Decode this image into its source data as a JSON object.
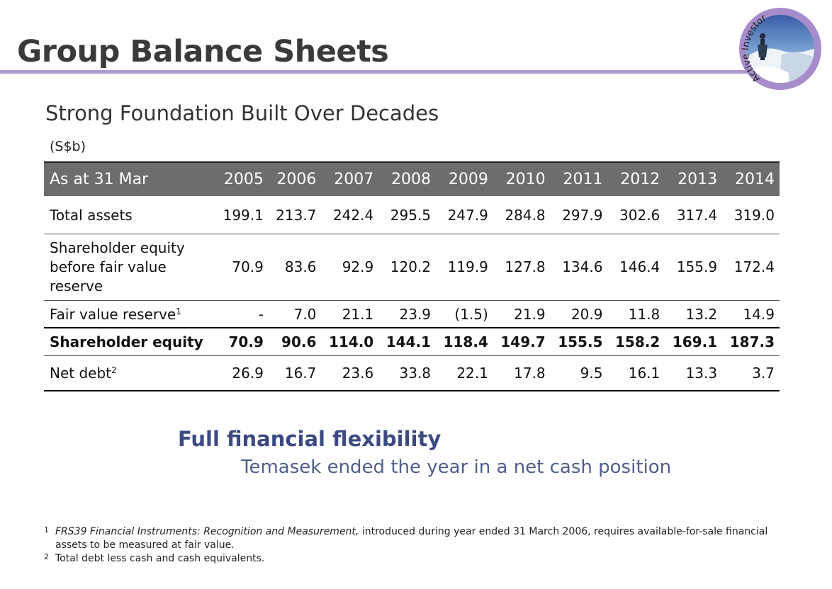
{
  "header": {
    "title": "Group Balance Sheets",
    "accent_color": "#b19ad2",
    "badge": {
      "text": "Active Investor"
    }
  },
  "subtitle": "Strong Foundation Built Over Decades",
  "units": "(S$b)",
  "table": {
    "header_color": "#6d6d6d",
    "columns": [
      "As at 31 Mar",
      "2005",
      "2006",
      "2007",
      "2008",
      "2009",
      "2010",
      "2011",
      "2012",
      "2013",
      "2014"
    ],
    "rows": [
      {
        "label": "Total assets",
        "values": [
          "199.1",
          "213.7",
          "242.4",
          "295.5",
          "247.9",
          "284.8",
          "297.9",
          "302.6",
          "317.4",
          "319.0"
        ]
      },
      {
        "label": "Shareholder equity before fair value reserve",
        "values": [
          "70.9",
          "83.6",
          "92.9",
          "120.2",
          "119.9",
          "127.8",
          "134.6",
          "146.4",
          "155.9",
          "172.4"
        ]
      },
      {
        "label": "Fair value reserve",
        "sup": "1",
        "values": [
          "-",
          "7.0",
          "21.1",
          "23.9",
          "(1.5)",
          "21.9",
          "20.9",
          "11.8",
          "13.2",
          "14.9"
        ]
      },
      {
        "label": "Shareholder equity",
        "values": [
          "70.9",
          "90.6",
          "114.0",
          "144.1",
          "118.4",
          "149.7",
          "155.5",
          "158.2",
          "169.1",
          "187.3"
        ]
      },
      {
        "label": "Net debt",
        "sup": "2",
        "values": [
          "26.9",
          "16.7",
          "23.6",
          "33.8",
          "22.1",
          "17.8",
          "9.5",
          "16.1",
          "13.3",
          "3.7"
        ]
      }
    ]
  },
  "highlight": {
    "heading": "Full financial flexibility",
    "text": "Temasek ended the year in a net cash position",
    "heading_color": "#3c4a82",
    "text_color": "#50608e"
  },
  "footnotes": [
    {
      "mark": "1",
      "italic": "FRS39 Financial Instruments: Recognition and Measurement,",
      "text": " introduced during year ended 31 March 2006, requires available-for-sale financial assets to be measured at fair value."
    },
    {
      "mark": "2",
      "text": "Total debt less cash and cash equivalents."
    }
  ]
}
